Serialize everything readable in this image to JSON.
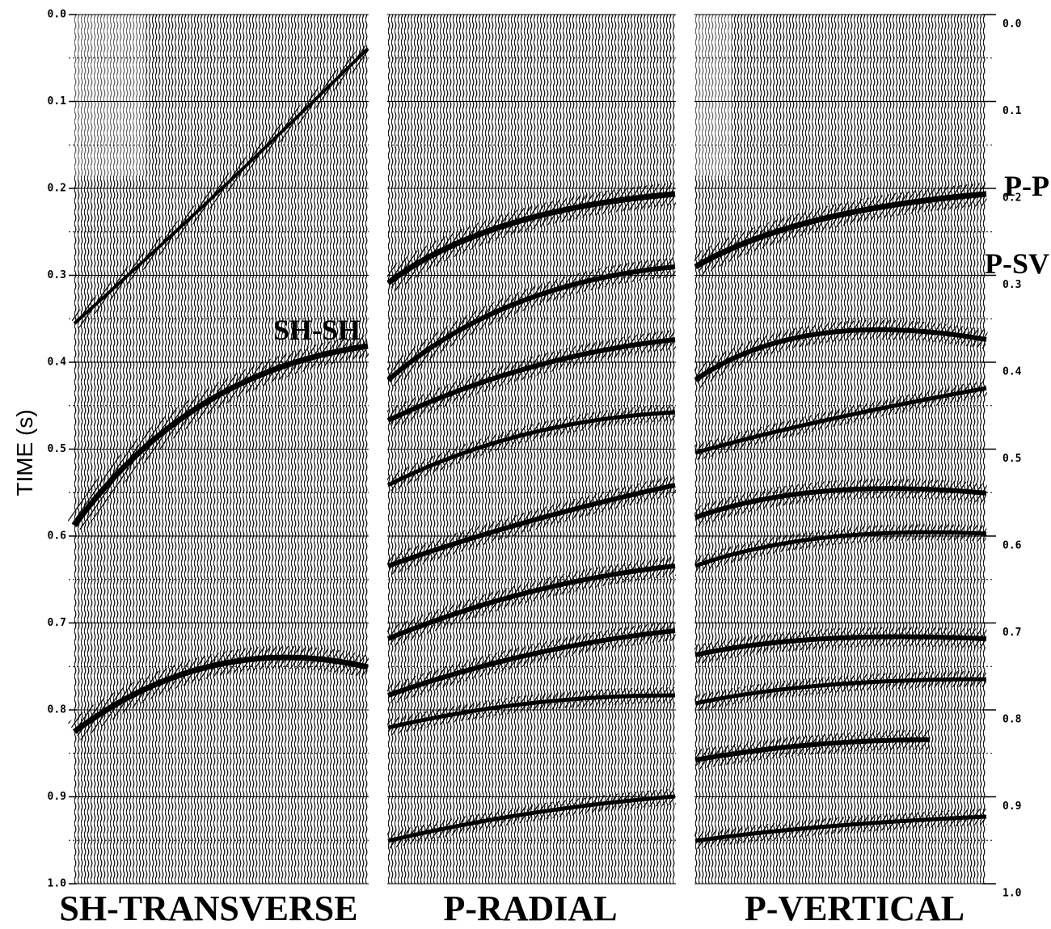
{
  "figure": {
    "y_axis_label": "TIME (s)",
    "left_ticks": [
      "0.0",
      "0.1",
      "0.2",
      "0.3",
      "0.4",
      "0.5",
      "0.6",
      "0.7",
      "0.8",
      "0.9",
      "1.0"
    ],
    "right_ticks": [
      "0.0",
      "0.1",
      "0.2",
      "0.3",
      "0.4",
      "0.5",
      "0.6",
      "0.7",
      "0.8",
      "0.9",
      "1.0"
    ],
    "panels": [
      {
        "label": "SH-TRANSVERSE",
        "events": [
          "SH-SH"
        ]
      },
      {
        "label": "P-RADIAL"
      },
      {
        "label": "P-VERTICAL",
        "events": [
          "P-P",
          "P-SV"
        ]
      }
    ]
  }
}
